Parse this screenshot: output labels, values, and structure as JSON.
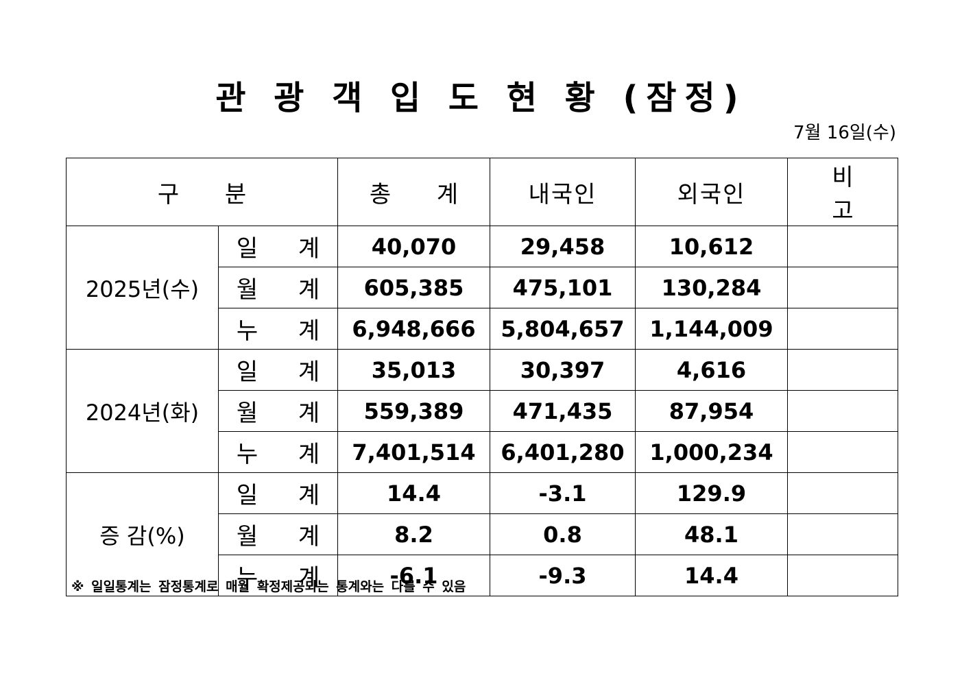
{
  "title": "관 광 객 입 도 현 황 (잠정)",
  "date": "7월 16일(수)",
  "headers": {
    "category": "구 분",
    "total": "총 계",
    "domestic": "내국인",
    "foreign": "외국인",
    "remarks": "비 고"
  },
  "groups": [
    {
      "label": "2025년(수)",
      "rows": [
        {
          "label": "일 계",
          "total": "40,070",
          "domestic": "29,458",
          "foreign": "10,612",
          "remarks": ""
        },
        {
          "label": "월 계",
          "total": "605,385",
          "domestic": "475,101",
          "foreign": "130,284",
          "remarks": ""
        },
        {
          "label": "누 계",
          "total": "6,948,666",
          "domestic": "5,804,657",
          "foreign": "1,144,009",
          "remarks": ""
        }
      ]
    },
    {
      "label": "2024년(화)",
      "rows": [
        {
          "label": "일 계",
          "total": "35,013",
          "domestic": "30,397",
          "foreign": "4,616",
          "remarks": ""
        },
        {
          "label": "월 계",
          "total": "559,389",
          "domestic": "471,435",
          "foreign": "87,954",
          "remarks": ""
        },
        {
          "label": "누 계",
          "total": "7,401,514",
          "domestic": "6,401,280",
          "foreign": "1,000,234",
          "remarks": ""
        }
      ]
    },
    {
      "label": "증 감(%)",
      "rows": [
        {
          "label": "일 계",
          "total": "14.4",
          "domestic": "-3.1",
          "foreign": "129.9",
          "remarks": ""
        },
        {
          "label": "월 계",
          "total": "8.2",
          "domestic": "0.8",
          "foreign": "48.1",
          "remarks": ""
        },
        {
          "label": "누 계",
          "total": "-6.1",
          "domestic": "-9.3",
          "foreign": "14.4",
          "remarks": ""
        }
      ]
    }
  ],
  "note": "※ 일일통계는 잠정통계로 매월 확정제공되는 통계와는 다를 수 있음"
}
